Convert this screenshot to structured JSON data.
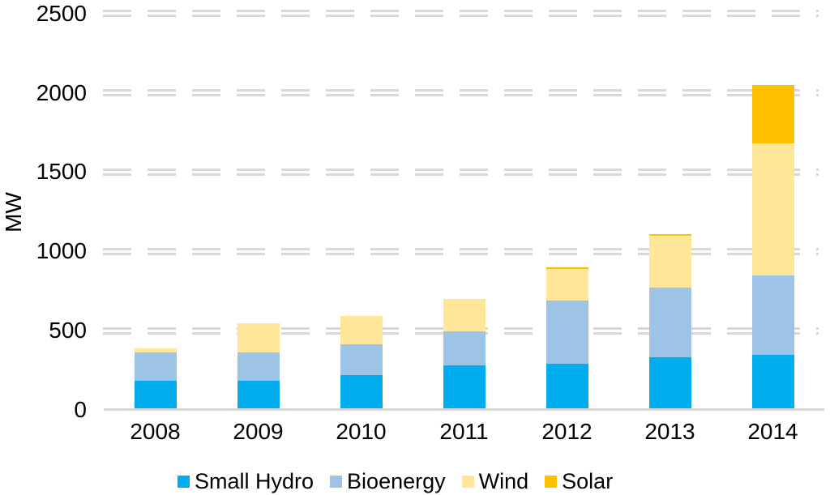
{
  "chart_data": {
    "type": "bar",
    "stacked": true,
    "title": "",
    "ylabel": "MW",
    "xlabel": "",
    "categories": [
      "2008",
      "2009",
      "2010",
      "2011",
      "2012",
      "2013",
      "2014"
    ],
    "series": [
      {
        "name": "Small Hydro",
        "color": "#00AEEF",
        "values": [
          185,
          185,
          220,
          280,
          290,
          330,
          350
        ]
      },
      {
        "name": "Bioenergy",
        "color": "#9DC3E6",
        "values": [
          180,
          180,
          195,
          215,
          400,
          440,
          500
        ]
      },
      {
        "name": "Wind",
        "color": "#FFE699",
        "values": [
          25,
          180,
          180,
          205,
          200,
          330,
          830
        ]
      },
      {
        "name": "Solar",
        "color": "#FFC000",
        "values": [
          0,
          0,
          0,
          0,
          10,
          10,
          370
        ]
      }
    ],
    "totals": [
      390,
      545,
      595,
      700,
      900,
      1110,
      2050
    ],
    "ylim": [
      0,
      2500
    ],
    "yticks": [
      0,
      500,
      1000,
      1500,
      2000,
      2500
    ],
    "grid": "dashed-double-horizontal",
    "legend_position": "bottom"
  },
  "colors": {
    "grid": "#D9D9D9",
    "axis_line": "#D9D9D9",
    "text": "#000000",
    "background": "#FFFFFF"
  }
}
